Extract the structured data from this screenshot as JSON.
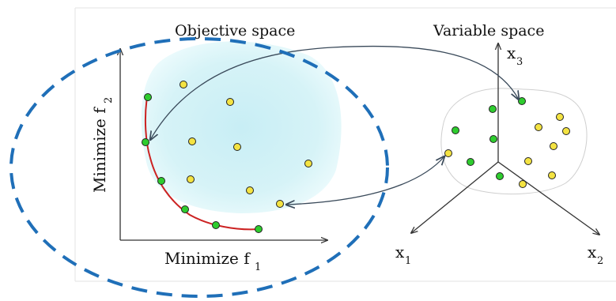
{
  "objective_space": {
    "title": "Objective space",
    "x_axis_label": "Minimize f",
    "x_axis_sub": "1",
    "y_axis_label": "Minimize f",
    "y_axis_sub": "2"
  },
  "variable_space": {
    "title": "Variable space",
    "axis_x1_label": "x",
    "axis_x1_sub": "1",
    "axis_x2_label": "x",
    "axis_x2_sub": "2",
    "axis_x3_label": "x",
    "axis_x3_sub": "3"
  },
  "colors": {
    "pareto_point": "#2ecc2e",
    "dominated_point": "#f4e342",
    "pareto_front": "#cc2222",
    "feasible_region": "#d6f3f7",
    "highlight_ellipse": "#1f6fb8",
    "axis": "#333333",
    "mapping_arrow": "#3a4a5a"
  },
  "icons": {
    "pareto_point": "green-circle",
    "dominated_point": "yellow-circle",
    "arrow": "double-headed-arrow"
  }
}
